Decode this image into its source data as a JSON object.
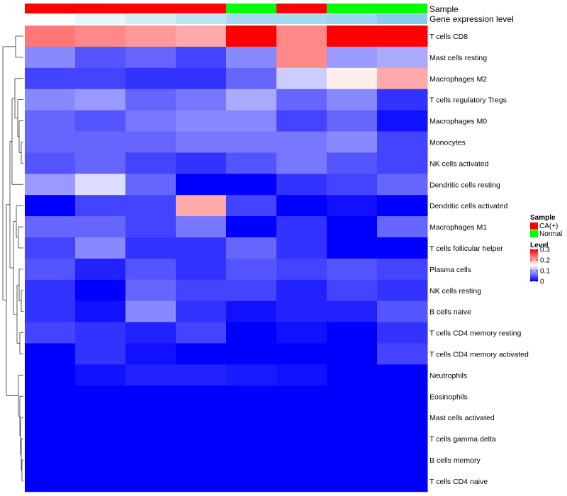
{
  "chart_data": {
    "type": "heatmap",
    "annotations": [
      {
        "name": "Sample",
        "values": [
          "CA(+)",
          "CA(+)",
          "CA(+)",
          "CA(+)",
          "Normal",
          "CA(+)",
          "Normal",
          "Normal"
        ]
      },
      {
        "name": "Gene expression level",
        "values": [
          0.02,
          0.03,
          0.1,
          0.15,
          0.2,
          0.2,
          0.22,
          0.3
        ]
      }
    ],
    "rows": [
      "T cells CD8",
      "Mast cells resting",
      "Macrophages M2",
      "T cells regulatory  Tregs",
      "Macrophages M0",
      "Monocytes",
      "NK cells activated",
      "Dendritic cells resting",
      "Dendritic cells activated",
      "Macrophages M1",
      "T cells follicular helper",
      "Plasma cells",
      "NK cells resting",
      "B cells naive",
      "T cells CD4 memory resting",
      "T cells CD4 memory activated",
      "Neutrophils",
      "Eosinophils",
      "Mast cells activated",
      "T cells gamma delta",
      "B cells memory",
      "T cells CD4 naive"
    ],
    "values": [
      [
        0.23,
        0.22,
        0.21,
        0.2,
        0.3,
        0.22,
        0.3,
        0.3
      ],
      [
        0.08,
        0.05,
        0.06,
        0.04,
        0.08,
        0.22,
        0.09,
        0.1
      ],
      [
        0.04,
        0.04,
        0.03,
        0.03,
        0.06,
        0.12,
        0.16,
        0.2
      ],
      [
        0.08,
        0.09,
        0.06,
        0.07,
        0.1,
        0.06,
        0.08,
        0.03
      ],
      [
        0.06,
        0.05,
        0.07,
        0.08,
        0.08,
        0.04,
        0.06,
        0.01
      ],
      [
        0.06,
        0.06,
        0.06,
        0.07,
        0.07,
        0.07,
        0.08,
        0.04
      ],
      [
        0.05,
        0.06,
        0.04,
        0.03,
        0.05,
        0.07,
        0.05,
        0.04
      ],
      [
        0.09,
        0.13,
        0.06,
        0.0,
        0.0,
        0.03,
        0.04,
        0.06
      ],
      [
        0.0,
        0.04,
        0.04,
        0.2,
        0.04,
        0.0,
        0.01,
        0.0
      ],
      [
        0.06,
        0.06,
        0.04,
        0.07,
        0.0,
        0.03,
        0.0,
        0.06
      ],
      [
        0.04,
        0.08,
        0.03,
        0.03,
        0.06,
        0.03,
        0.0,
        0.0
      ],
      [
        0.05,
        0.02,
        0.05,
        0.03,
        0.05,
        0.04,
        0.05,
        0.04
      ],
      [
        0.03,
        0.0,
        0.06,
        0.04,
        0.04,
        0.02,
        0.04,
        0.03
      ],
      [
        0.03,
        0.01,
        0.08,
        0.03,
        0.01,
        0.02,
        0.02,
        0.05
      ],
      [
        0.04,
        0.03,
        0.02,
        0.04,
        0.0,
        0.01,
        0.0,
        0.03
      ],
      [
        0.0,
        0.03,
        0.01,
        0.0,
        0.0,
        0.0,
        0.0,
        0.04
      ],
      [
        0.0,
        0.01,
        0.02,
        0.02,
        0.015,
        0.01,
        0.0,
        0.0
      ],
      [
        0.0,
        0.0,
        0.0,
        0.0,
        0.0,
        0.0,
        0.0,
        0.0
      ],
      [
        0.0,
        0.0,
        0.0,
        0.0,
        0.0,
        0.0,
        0.0,
        0.0
      ],
      [
        0.0,
        0.0,
        0.0,
        0.0,
        0.0,
        0.0,
        0.0,
        0.0
      ],
      [
        0.0,
        0.0,
        0.0,
        0.0,
        0.0,
        0.0,
        0.0,
        0.0
      ],
      [
        0.0,
        0.0,
        0.0,
        0.0,
        0.0,
        0.0,
        0.0,
        0.0
      ]
    ],
    "color_scale": {
      "min": 0,
      "max": 0.3,
      "low_color": "#0000ff",
      "mid_color": "#ffffff",
      "high_color": "#ff0000"
    },
    "row_dendrogram": true,
    "column_dendrogram": false
  },
  "legend": {
    "sample_title": "Sample",
    "sample_items": [
      {
        "label": "CA(+)",
        "color": "#ff0000"
      },
      {
        "label": "Normal",
        "color": "#00ff00"
      }
    ],
    "level_title": "Level",
    "level_ticks": [
      "0.3",
      "0.2",
      "0.1",
      "0"
    ],
    "level_tick_values": [
      0.3,
      0.2,
      0.1,
      0
    ],
    "gene_expression_colors": [
      "#ffffff",
      "#e8f6fb",
      "#d4eef7",
      "#bde4f2",
      "#a6dbef",
      "#a6dbef",
      "#9ad6ee",
      "#87ceeb"
    ]
  }
}
